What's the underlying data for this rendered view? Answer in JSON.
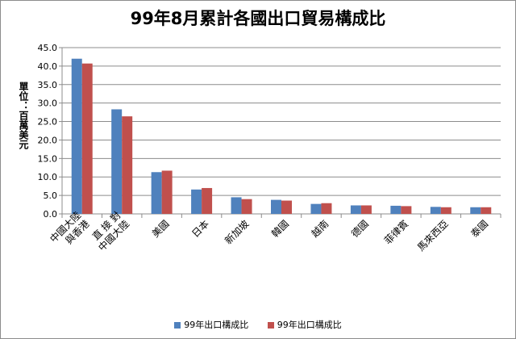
{
  "chart_data": {
    "type": "bar",
    "title": "99年8月累計各國出口貿易構成比",
    "ylabel": "單位：百萬美元",
    "xlabel": "",
    "ylim": [
      0,
      45
    ],
    "yticks": [
      "0.0",
      "5.0",
      "10.0",
      "15.0",
      "20.0",
      "25.0",
      "30.0",
      "35.0",
      "40.0",
      "45.0"
    ],
    "grid": true,
    "legend_position": "bottom",
    "categories": [
      "中國大陸與香港",
      "直接對中國大陸",
      "美國",
      "日本",
      "新加坡",
      "韓國",
      "越南",
      "德國",
      "菲律賓",
      "馬來西亞",
      "泰國"
    ],
    "category_lines": [
      [
        "中國大陸",
        "與香港"
      ],
      [
        "直 接 對",
        "中國大陸"
      ],
      [
        "美國"
      ],
      [
        "日本"
      ],
      [
        "新加坡"
      ],
      [
        "韓國"
      ],
      [
        "越南"
      ],
      [
        "德國"
      ],
      [
        "菲律賓"
      ],
      [
        "馬來西亞"
      ],
      [
        "泰國"
      ]
    ],
    "series": [
      {
        "name": "99年出口構成比",
        "color": "#4f81bd",
        "values": [
          42.0,
          28.3,
          11.3,
          6.6,
          4.5,
          3.8,
          2.7,
          2.3,
          2.2,
          1.9,
          1.8
        ]
      },
      {
        "name": "99年出口構成比",
        "color": "#c0504d",
        "values": [
          40.7,
          26.4,
          11.7,
          7.0,
          4.0,
          3.6,
          2.9,
          2.3,
          2.1,
          1.8,
          1.8
        ]
      }
    ]
  }
}
